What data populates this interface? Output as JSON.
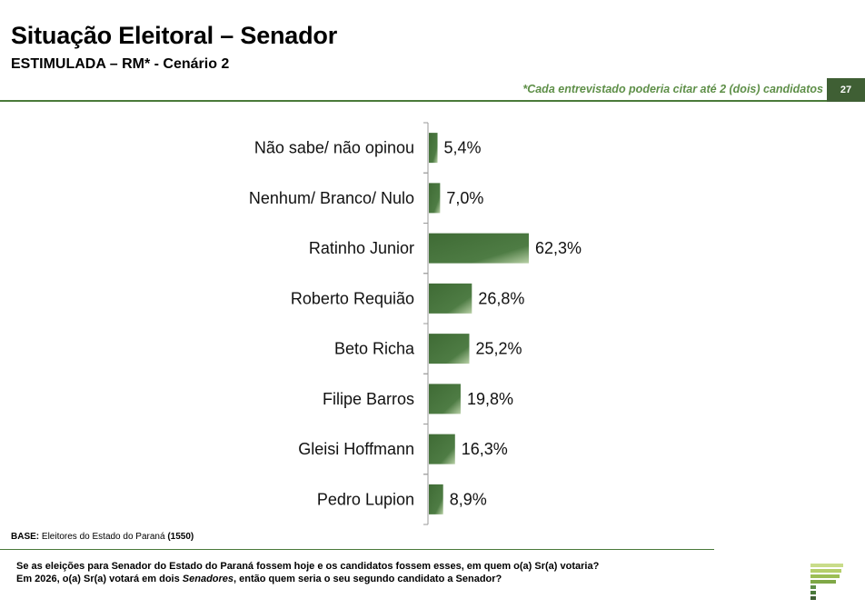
{
  "header": {
    "title": "Situação Eleitoral – Senador",
    "subtitle": "ESTIMULADA – RM* - Cenário 2",
    "note": "*Cada entrevistado poderia citar até 2 (dois) candidatos",
    "page_number": "27"
  },
  "footer": {
    "base_label": "BASE:",
    "base_text": " Eleitores do Estado do Paraná ",
    "base_count": "(1550)",
    "question_line1": "Se as eleições para Senador do Estado do Paraná fossem hoje e os candidatos fossem esses, em quem o(a) Sr(a) votaria?",
    "question_line2_pre": "Em 2026, o(a) Sr(a) votará em dois ",
    "question_line2_em": "Senadores",
    "question_line2_post": ", então quem seria o seu segundo candidato a Senador?"
  },
  "chart_data": {
    "type": "bar",
    "orientation": "horizontal",
    "categories": [
      "Não sabe/ não opinou",
      "Nenhum/ Branco/ Nulo",
      "Ratinho Junior",
      "Roberto Requião",
      "Beto Richa",
      "Filipe Barros",
      "Gleisi Hoffmann",
      "Pedro Lupion"
    ],
    "values": [
      5.4,
      7.0,
      62.3,
      26.8,
      25.2,
      19.8,
      16.3,
      8.9
    ],
    "value_labels": [
      "5,4%",
      "7,0%",
      "62,3%",
      "26,8%",
      "25,2%",
      "19,8%",
      "16,3%",
      "8,9%"
    ],
    "xlim": [
      0,
      100
    ],
    "grid": false,
    "colors": {
      "bar_dark": "#3f6b35",
      "bar_light": "#b8d0a6",
      "axis": "#999999"
    }
  }
}
